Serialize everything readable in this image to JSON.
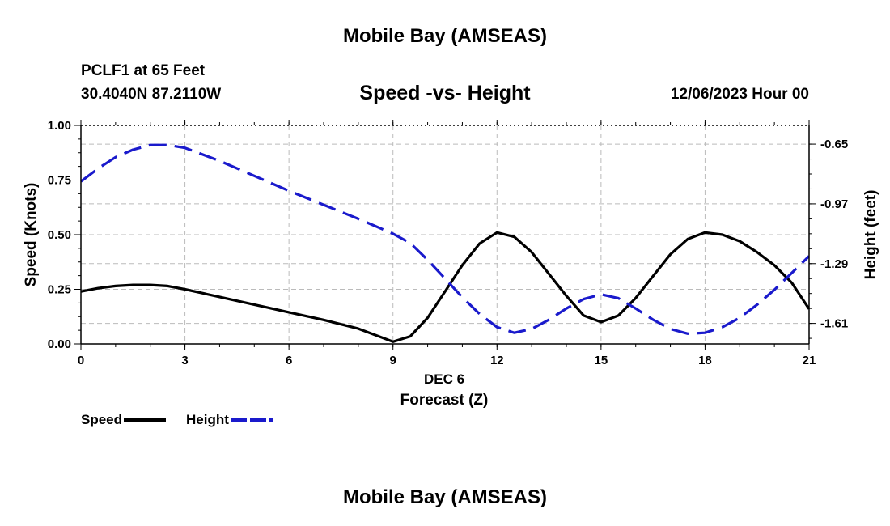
{
  "header": {
    "title": "Mobile Bay (AMSEAS)",
    "station": "PCLF1 at 65 Feet",
    "coords": "30.4040N  87.2110W",
    "subtitle": "Speed -vs- Height",
    "datetime": "12/06/2023 Hour 00"
  },
  "footer": {
    "title": "Mobile Bay (AMSEAS)"
  },
  "legend": {
    "speed_label": "Speed",
    "height_label": "Height"
  },
  "colors": {
    "speed": "#000000",
    "height": "#1a1acc",
    "grid": "#bbbbbb"
  },
  "chart_data": {
    "type": "line",
    "title": "Speed -vs- Height",
    "xlabel": "Forecast (Z)",
    "xlabel_date": "DEC 6",
    "ylabel": "Speed (Knots)",
    "y2label": "Height (feet)",
    "xlim": [
      0,
      21
    ],
    "ylim": [
      0,
      1
    ],
    "y2lim": [
      -1.72,
      -0.55
    ],
    "x_ticks": [
      "0",
      "3",
      "6",
      "9",
      "12",
      "15",
      "18",
      "21"
    ],
    "y_ticks": [
      "0.00",
      "0.25",
      "0.50",
      "0.75",
      "1.00"
    ],
    "y2_ticks": [
      "-0.65",
      "-0.97",
      "-1.29",
      "-1.61"
    ],
    "series": [
      {
        "name": "Speed",
        "axis": "left",
        "style": "solid",
        "x": [
          0,
          0.5,
          1,
          1.5,
          2,
          2.5,
          3,
          4,
          5,
          6,
          7,
          8,
          9,
          9.5,
          10,
          10.5,
          11,
          11.5,
          12,
          12.5,
          13,
          13.5,
          14,
          14.5,
          15,
          15.5,
          16,
          16.5,
          17,
          17.5,
          18,
          18.5,
          19,
          19.5,
          20,
          20.5,
          21
        ],
        "values": [
          0.24,
          0.255,
          0.265,
          0.27,
          0.27,
          0.265,
          0.25,
          0.215,
          0.18,
          0.145,
          0.11,
          0.07,
          0.01,
          0.035,
          0.12,
          0.24,
          0.36,
          0.46,
          0.51,
          0.49,
          0.42,
          0.32,
          0.22,
          0.13,
          0.1,
          0.13,
          0.21,
          0.31,
          0.41,
          0.48,
          0.51,
          0.5,
          0.47,
          0.42,
          0.36,
          0.28,
          0.16
        ]
      },
      {
        "name": "Height",
        "axis": "right",
        "style": "dashed",
        "x": [
          0,
          0.5,
          1,
          1.5,
          2,
          2.5,
          3,
          4,
          5,
          6,
          7,
          8,
          9,
          9.5,
          10,
          10.5,
          11,
          11.5,
          12,
          12.5,
          13,
          13.5,
          14,
          14.5,
          15,
          15.5,
          16,
          16.5,
          17,
          17.5,
          18,
          18.5,
          19,
          19.5,
          20,
          20.5,
          21
        ],
        "values": [
          -0.85,
          -0.78,
          -0.72,
          -0.68,
          -0.655,
          -0.655,
          -0.67,
          -0.74,
          -0.82,
          -0.9,
          -0.975,
          -1.05,
          -1.13,
          -1.18,
          -1.27,
          -1.37,
          -1.47,
          -1.56,
          -1.63,
          -1.66,
          -1.64,
          -1.59,
          -1.53,
          -1.48,
          -1.455,
          -1.475,
          -1.53,
          -1.59,
          -1.64,
          -1.665,
          -1.66,
          -1.63,
          -1.58,
          -1.51,
          -1.43,
          -1.34,
          -1.25
        ]
      }
    ]
  }
}
